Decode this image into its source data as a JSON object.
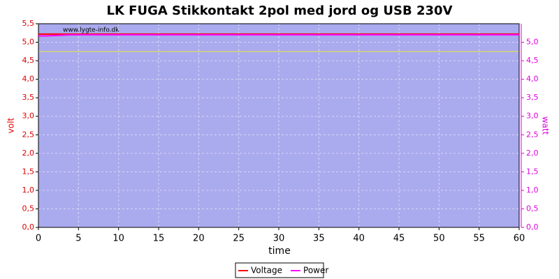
{
  "chart_data": {
    "type": "line",
    "title": "LK FUGA Stikkontakt 2pol med jord og USB 230V",
    "watermark": "www.lygte-info.dk",
    "xlabel": "time",
    "ylabel": "volt",
    "y2label": "watt",
    "x": [
      0,
      1,
      2,
      3,
      4,
      5,
      10,
      15,
      20,
      25,
      30,
      35,
      40,
      45,
      50,
      55,
      60
    ],
    "series": [
      {
        "name": "Voltage",
        "color": "#ff0000",
        "values": [
          5.22,
          5.22,
          5.22,
          5.22,
          5.22,
          5.22,
          5.22,
          5.22,
          5.22,
          5.22,
          5.22,
          5.22,
          5.22,
          5.22,
          5.22,
          5.22,
          5.22
        ]
      },
      {
        "name": "Power",
        "color": "#ff00ff",
        "axis": "y2",
        "values": [
          5.17,
          5.17,
          5.18,
          5.19,
          5.2,
          5.2,
          5.2,
          5.2,
          5.2,
          5.2,
          5.2,
          5.2,
          5.2,
          5.2,
          5.2,
          5.2,
          5.2
        ]
      }
    ],
    "reference_line": {
      "value": 4.75,
      "color": "#e8e840"
    },
    "xlim": [
      0,
      60
    ],
    "xticks": [
      0,
      5,
      10,
      15,
      20,
      25,
      30,
      35,
      40,
      45,
      50,
      55,
      60
    ],
    "ylim": [
      0,
      5.5
    ],
    "yticks": [
      {
        "value": 0,
        "label": "0,0"
      },
      {
        "value": 0.5,
        "label": "0,5"
      },
      {
        "value": 1,
        "label": "1,0"
      },
      {
        "value": 1.5,
        "label": "1,5"
      },
      {
        "value": 2,
        "label": "2,0"
      },
      {
        "value": 2.5,
        "label": "2,5"
      },
      {
        "value": 3,
        "label": "3,0"
      },
      {
        "value": 3.5,
        "label": "3,5"
      },
      {
        "value": 4,
        "label": "4,0"
      },
      {
        "value": 4.5,
        "label": "4,5"
      },
      {
        "value": 5,
        "label": "5,0"
      },
      {
        "value": 5.5,
        "label": "5,5"
      }
    ],
    "y2lim": [
      0,
      5.5
    ],
    "y2ticks": [
      {
        "value": 0,
        "label": "0,0"
      },
      {
        "value": 0.5,
        "label": "0,5"
      },
      {
        "value": 1,
        "label": "1,0"
      },
      {
        "value": 1.5,
        "label": "1,5"
      },
      {
        "value": 2,
        "label": "2,0"
      },
      {
        "value": 2.5,
        "label": "2,5"
      },
      {
        "value": 3,
        "label": "3,0"
      },
      {
        "value": 3.5,
        "label": "3,5"
      },
      {
        "value": 4,
        "label": "4,0"
      },
      {
        "value": 4.5,
        "label": "4,5"
      },
      {
        "value": 5,
        "label": "5,0"
      }
    ],
    "grid": true,
    "legend": "bottom"
  }
}
